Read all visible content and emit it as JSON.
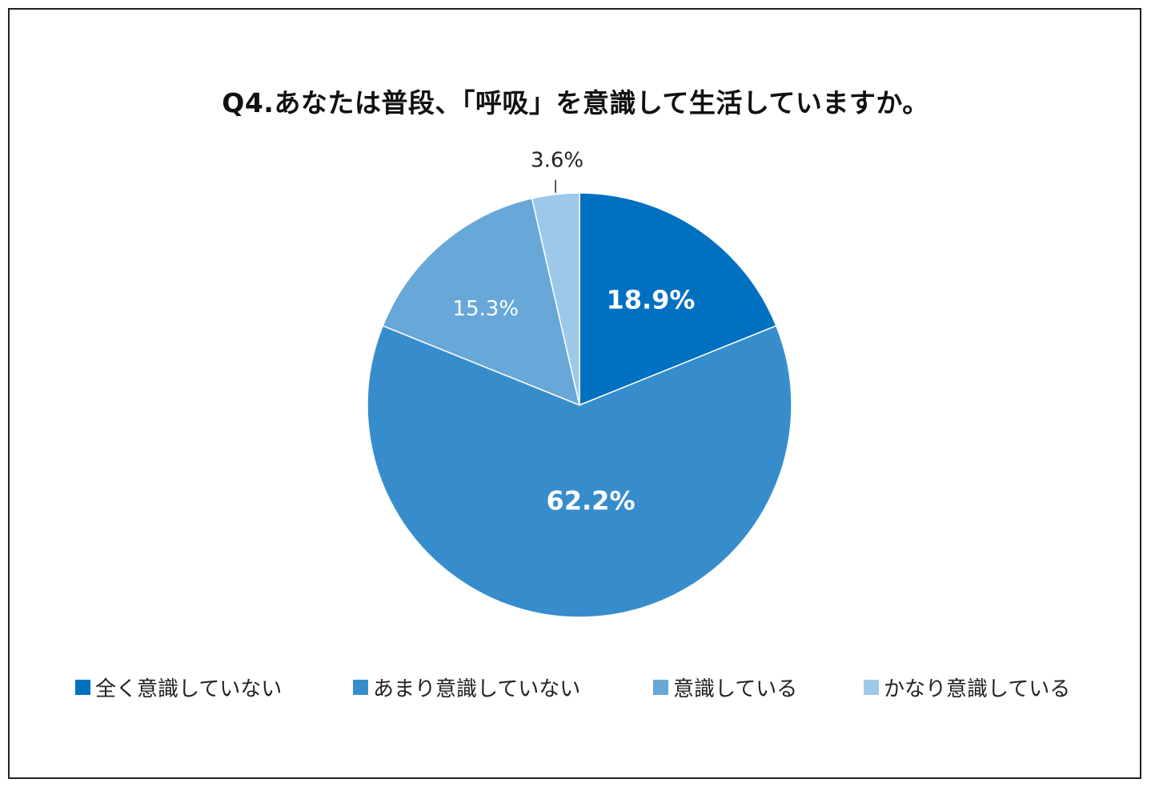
{
  "chart_data": {
    "type": "pie",
    "title": "Q4.あなたは普段、「呼吸」を意識して生活していますか。",
    "slices": [
      {
        "label": "全く意識していない",
        "value": 18.9,
        "display": "18.9%",
        "color": "#0070c0"
      },
      {
        "label": "あまり意識していない",
        "value": 62.2,
        "display": "62.2%",
        "color": "#378dcc"
      },
      {
        "label": "意識している",
        "value": 15.3,
        "display": "15.3%",
        "color": "#68a8d8"
      },
      {
        "label": "かなり意識している",
        "value": 3.6,
        "display": "3.6%",
        "color": "#9dc8e9"
      }
    ],
    "legend_position": "bottom"
  }
}
